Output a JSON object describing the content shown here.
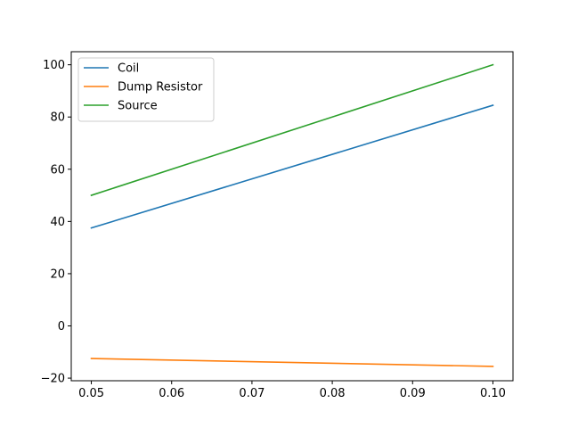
{
  "chart_data": {
    "type": "line",
    "title": "",
    "xlabel": "",
    "ylabel": "",
    "xlim": [
      0.0475,
      0.1025
    ],
    "ylim": [
      -21.0,
      105.0
    ],
    "x_ticks": [
      0.05,
      0.06,
      0.07,
      0.08,
      0.09,
      0.1
    ],
    "x_tick_labels": [
      "0.05",
      "0.06",
      "0.07",
      "0.08",
      "0.09",
      "0.10"
    ],
    "y_ticks": [
      -20,
      0,
      20,
      40,
      60,
      80,
      100
    ],
    "y_tick_labels": [
      "−20",
      "0",
      "20",
      "40",
      "60",
      "80",
      "100"
    ],
    "grid": false,
    "legend_position": "top-left",
    "series": [
      {
        "name": "Coil",
        "color": "#1f77b4",
        "x": [
          0.05,
          0.1
        ],
        "y": [
          37.5,
          84.5
        ]
      },
      {
        "name": "Dump Resistor",
        "color": "#ff7f0e",
        "x": [
          0.05,
          0.1
        ],
        "y": [
          -12.5,
          -15.5
        ]
      },
      {
        "name": "Source",
        "color": "#2ca02c",
        "x": [
          0.05,
          0.1
        ],
        "y": [
          50.0,
          100.0
        ]
      }
    ]
  }
}
